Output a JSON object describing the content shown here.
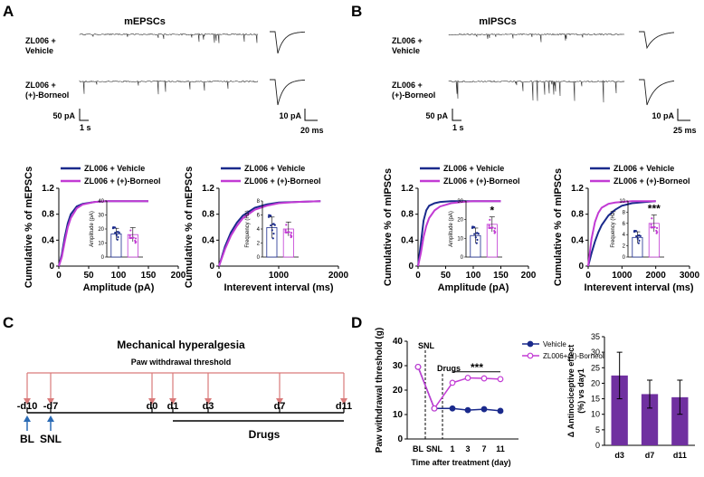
{
  "panels": {
    "A": {
      "label": "A",
      "title": "mEPSCs",
      "trace_labels": [
        [
          "ZL006 +",
          "Vehicle"
        ],
        [
          "ZL006 +",
          "(+)-Borneol"
        ]
      ],
      "scalebar_left": {
        "y": "50 pA",
        "x": "1 s"
      },
      "scalebar_right": {
        "y": "10 pA",
        "x": "20 ms"
      }
    },
    "B": {
      "label": "B",
      "title": "mIPSCs",
      "trace_labels": [
        [
          "ZL006 +",
          "Vehicle"
        ],
        [
          "ZL006 +",
          "(+)-Borneol"
        ]
      ],
      "scalebar_left": {
        "y": "50 pA",
        "x": "1 s"
      },
      "scalebar_right": {
        "y": "10 pA",
        "x": "25 ms"
      }
    },
    "C": {
      "label": "C",
      "title": "Mechanical hyperalgesia",
      "subtitle": "Paw withdrawal threshold",
      "timepoints": [
        "-d10",
        "-d7",
        "d0",
        "d1",
        "d3",
        "d7",
        "d11"
      ],
      "events": [
        "BL",
        "SNL"
      ],
      "drugs_label": "Drugs"
    },
    "D": {
      "label": "D"
    }
  },
  "colors": {
    "vehicle": "#1a2a8c",
    "borneol": "#c23bd4",
    "arrow_red": "#d97a7a",
    "arrow_blue": "#2a6bb5",
    "bar": "#7030a0"
  },
  "chart_data": [
    {
      "id": "A-left",
      "type": "line",
      "xlabel": "Amplitude (pA)",
      "ylabel": "Cumulative % of mEPSCs",
      "xlim": [
        0,
        200
      ],
      "ylim": [
        0,
        1.2
      ],
      "xticks": [
        "0",
        "50",
        "100",
        "150",
        "200"
      ],
      "yticks": [
        "0",
        "0.4",
        "0.8",
        "1.2"
      ],
      "legend": "top",
      "series": [
        {
          "name": "ZL006 + Vehicle",
          "x": [
            0,
            5,
            10,
            15,
            20,
            30,
            40,
            60,
            80,
            100,
            150
          ],
          "values": [
            0,
            0.18,
            0.45,
            0.66,
            0.8,
            0.92,
            0.96,
            0.99,
            1.0,
            1.0,
            1.0
          ]
        },
        {
          "name": "ZL006 + (+)-Borneol",
          "x": [
            0,
            5,
            10,
            15,
            20,
            30,
            40,
            60,
            80,
            100,
            150
          ],
          "values": [
            0,
            0.14,
            0.38,
            0.6,
            0.74,
            0.89,
            0.95,
            0.99,
            1.0,
            1.0,
            1.0
          ]
        }
      ],
      "inset": {
        "ylabel": "Amplitude (pA)",
        "ylim": [
          0,
          40
        ],
        "yticks": [
          "0",
          "10",
          "20",
          "30",
          "40"
        ],
        "values": [
          16.5,
          16.0
        ],
        "errors": [
          4,
          5
        ]
      }
    },
    {
      "id": "A-right",
      "type": "line",
      "xlabel": "Interevent interval (ms)",
      "ylabel": "Cumulative % of mEPSCs",
      "xlim": [
        0,
        2000
      ],
      "ylim": [
        0,
        1.2
      ],
      "xticks": [
        "0",
        "1000",
        "2000"
      ],
      "yticks": [
        "0",
        "0.4",
        "0.8",
        "1.2"
      ],
      "legend": "top",
      "series": [
        {
          "name": "ZL006 + Vehicle",
          "x": [
            0,
            100,
            200,
            300,
            400,
            600,
            800,
            1000,
            1300,
            1700
          ],
          "values": [
            0,
            0.3,
            0.52,
            0.67,
            0.78,
            0.9,
            0.95,
            0.98,
            0.99,
            1.0
          ]
        },
        {
          "name": "ZL006 + (+)-Borneol",
          "x": [
            0,
            100,
            200,
            300,
            400,
            600,
            800,
            1000,
            1300,
            1700
          ],
          "values": [
            0,
            0.26,
            0.47,
            0.62,
            0.74,
            0.87,
            0.93,
            0.97,
            0.99,
            1.0
          ]
        }
      ],
      "inset": {
        "ylabel": "Frequency (Hz)",
        "ylim": [
          0,
          8
        ],
        "yticks": [
          "0",
          "2",
          "4",
          "6",
          "8"
        ],
        "values": [
          4.2,
          4.0
        ],
        "errors": [
          1.5,
          1.0
        ]
      }
    },
    {
      "id": "B-left",
      "type": "line",
      "xlabel": "Amplitude (pA)",
      "ylabel": "Cumulative % of mIPSCs",
      "xlim": [
        0,
        200
      ],
      "ylim": [
        0,
        1.2
      ],
      "xticks": [
        "0",
        "50",
        "100",
        "150",
        "200"
      ],
      "yticks": [
        "0",
        "0.4",
        "0.8",
        "1.2"
      ],
      "legend": "top",
      "series": [
        {
          "name": "ZL006 + Vehicle",
          "x": [
            0,
            5,
            10,
            15,
            20,
            30,
            40,
            60,
            80,
            100,
            150
          ],
          "values": [
            0,
            0.35,
            0.7,
            0.86,
            0.93,
            0.97,
            0.99,
            1.0,
            1.0,
            1.0,
            1.0
          ]
        },
        {
          "name": "ZL006 + (+)-Borneol",
          "x": [
            0,
            5,
            10,
            15,
            20,
            30,
            40,
            60,
            80,
            100,
            150
          ],
          "values": [
            0,
            0.2,
            0.45,
            0.62,
            0.74,
            0.86,
            0.92,
            0.97,
            0.99,
            1.0,
            1.0
          ]
        }
      ],
      "inset": {
        "ylabel": "Amplitude (pA)",
        "ylim": [
          0,
          30
        ],
        "yticks": [
          "0",
          "10",
          "20",
          "30"
        ],
        "values": [
          11.5,
          17.5
        ],
        "errors": [
          4,
          4
        ],
        "annotation": "*"
      }
    },
    {
      "id": "B-right",
      "type": "line",
      "xlabel": "Interevent interval (ms)",
      "ylabel": "Cumulative % of mIPSCs",
      "xlim": [
        0,
        3000
      ],
      "ylim": [
        0,
        1.2
      ],
      "xticks": [
        "0",
        "1000",
        "2000",
        "3000"
      ],
      "yticks": [
        "0",
        "0.4",
        "0.8",
        "1.2"
      ],
      "legend": "top",
      "series": [
        {
          "name": "ZL006 + Vehicle",
          "x": [
            0,
            100,
            200,
            300,
            400,
            600,
            800,
            1000,
            1300,
            1700,
            2000
          ],
          "values": [
            0,
            0.2,
            0.38,
            0.52,
            0.63,
            0.78,
            0.87,
            0.93,
            0.97,
            0.99,
            1.0
          ]
        },
        {
          "name": "ZL006 + (+)-Borneol",
          "x": [
            0,
            100,
            200,
            300,
            400,
            600,
            800,
            1000,
            1300,
            1700,
            2000
          ],
          "values": [
            0,
            0.42,
            0.68,
            0.82,
            0.9,
            0.96,
            0.98,
            0.99,
            1.0,
            1.0,
            1.0
          ]
        }
      ],
      "inset": {
        "ylabel": "Frequency (Hz)",
        "ylim": [
          0,
          10
        ],
        "yticks": [
          "0",
          "2",
          "4",
          "6",
          "8",
          "10"
        ],
        "values": [
          3.5,
          6.0
        ],
        "errors": [
          1.0,
          1.5
        ],
        "annotation": "***"
      }
    },
    {
      "id": "D-left",
      "type": "line",
      "xlabel": "Time after treatment (day)",
      "ylabel": "Paw withdrawal threshold (g)",
      "categories": [
        "BL",
        "SNL",
        "1",
        "3",
        "7",
        "11"
      ],
      "ylim": [
        0,
        40
      ],
      "yticks": [
        "0",
        "10",
        "20",
        "30",
        "40"
      ],
      "legend": "top-right",
      "annotations": [
        "SNL",
        "Drugs",
        "***"
      ],
      "series": [
        {
          "name": "Vehicle",
          "values": [
            29.5,
            12.5,
            12.5,
            11.8,
            12.2,
            11.5
          ],
          "errors": [
            1.0,
            0.8,
            1.0,
            0.8,
            0.8,
            0.8
          ]
        },
        {
          "name": "ZL006+(+)-Borneol",
          "values": [
            29.5,
            12.5,
            23.0,
            25.0,
            24.8,
            24.5
          ],
          "errors": [
            1.0,
            0.8,
            1.2,
            1.2,
            1.2,
            1.2
          ]
        }
      ]
    },
    {
      "id": "D-right",
      "type": "bar",
      "ylabel": "Δ Antinociceptive effect\n(%) vs day1",
      "categories": [
        "d3",
        "d7",
        "d11"
      ],
      "values": [
        22.5,
        16.5,
        15.5
      ],
      "errors": [
        7.5,
        4.5,
        5.5
      ],
      "ylim": [
        0,
        35
      ],
      "yticks": [
        "0",
        "5",
        "10",
        "15",
        "20",
        "25",
        "30",
        "35"
      ]
    }
  ]
}
